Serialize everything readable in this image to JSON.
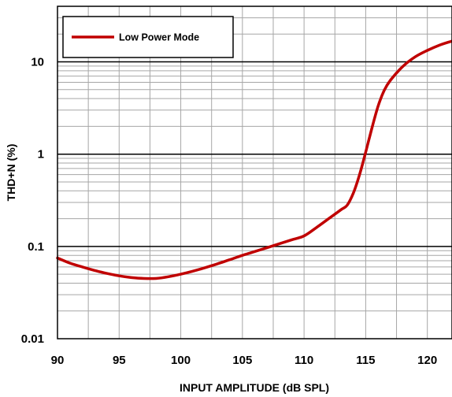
{
  "chart_data": {
    "type": "line",
    "xlabel": "INPUT AMPLITUDE (dB SPL)",
    "ylabel": "THD+N (%)",
    "xlim": [
      90,
      122
    ],
    "ylim": [
      0.01,
      40
    ],
    "y_scale": "log",
    "x_ticks": [
      90,
      95,
      100,
      105,
      110,
      115,
      120
    ],
    "x_tick_labels": [
      "90",
      "95",
      "100",
      "105",
      "110",
      "115",
      "120"
    ],
    "y_ticks": [
      0.01,
      0.1,
      1,
      10
    ],
    "y_tick_labels": [
      "0.01",
      "0.1",
      "1",
      "10"
    ],
    "grid": true,
    "legend_position": "top-left",
    "series": [
      {
        "name": "Low Power Mode",
        "color": "#c00000",
        "x": [
          90,
          91,
          92,
          93,
          94,
          95,
          96,
          97,
          98,
          99,
          100,
          101,
          102,
          103,
          104,
          105,
          106,
          107,
          108,
          109,
          110,
          111,
          112,
          113,
          113.5,
          114,
          114.5,
          115,
          115.5,
          116,
          116.5,
          117,
          118,
          119,
          120,
          121,
          122
        ],
        "y": [
          0.075,
          0.066,
          0.06,
          0.055,
          0.051,
          0.048,
          0.046,
          0.045,
          0.045,
          0.047,
          0.05,
          0.054,
          0.059,
          0.065,
          0.072,
          0.08,
          0.088,
          0.097,
          0.107,
          0.118,
          0.13,
          0.16,
          0.2,
          0.25,
          0.28,
          0.38,
          0.6,
          1.05,
          1.9,
          3.3,
          4.9,
          6.3,
          8.9,
          11.3,
          13.3,
          15.2,
          16.8
        ]
      }
    ]
  }
}
